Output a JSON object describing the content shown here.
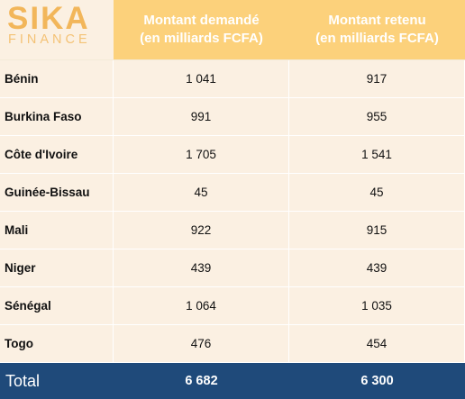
{
  "logo": {
    "line1": "SIKA",
    "line2": "FINANCE"
  },
  "header": {
    "col2": {
      "line1": "Montant demandé",
      "line2": "(en milliards FCFA)"
    },
    "col3": {
      "line1": "Montant retenu",
      "line2": "(en milliards FCFA)"
    }
  },
  "rows": [
    {
      "country": "Bénin",
      "requested": "1 041",
      "retained": "917"
    },
    {
      "country": "Burkina Faso",
      "requested": "991",
      "retained": "955"
    },
    {
      "country": "Côte d'Ivoire",
      "requested": "1 705",
      "retained": "1 541"
    },
    {
      "country": "Guinée-Bissau",
      "requested": "45",
      "retained": "45"
    },
    {
      "country": "Mali",
      "requested": "922",
      "retained": "915"
    },
    {
      "country": "Niger",
      "requested": "439",
      "retained": "439"
    },
    {
      "country": "Sénégal",
      "requested": "1 064",
      "retained": "1 035"
    },
    {
      "country": "Togo",
      "requested": "476",
      "retained": "454"
    }
  ],
  "total": {
    "label": "Total",
    "requested": "6 682",
    "retained": "6 300"
  },
  "colors": {
    "header_bg": "#fcd17b",
    "row_bg": "#fbf0e2",
    "total_bg": "#1f4a7a",
    "logo_text": "#f2b65a"
  }
}
